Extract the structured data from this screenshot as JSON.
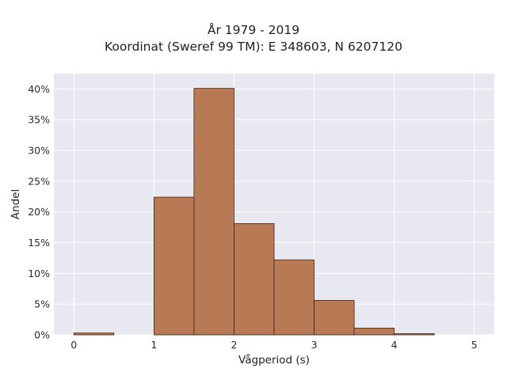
{
  "chart_data": {
    "type": "bar",
    "title": "År 1979 - 2019",
    "subtitle": "Koordinat (Sweref 99 TM): E 348603, N 6207120",
    "xlabel": "Vågperiod (s)",
    "ylabel": "Andel",
    "xlim": [
      -0.25,
      5.25
    ],
    "ylim": [
      0,
      0.425
    ],
    "xticks": [
      0,
      1,
      2,
      3,
      4,
      5
    ],
    "xtick_labels": [
      "0",
      "1",
      "2",
      "3",
      "4",
      "5"
    ],
    "yticks": [
      0,
      0.05,
      0.1,
      0.15,
      0.2,
      0.25,
      0.3,
      0.35,
      0.4
    ],
    "ytick_labels": [
      "0%",
      "5%",
      "10%",
      "15%",
      "20%",
      "25%",
      "30%",
      "35%",
      "40%"
    ],
    "bin_width": 0.5,
    "bins": [
      {
        "start": 0.0,
        "end": 0.5,
        "value": 0.003
      },
      {
        "start": 0.5,
        "end": 1.0,
        "value": 0.0
      },
      {
        "start": 1.0,
        "end": 1.5,
        "value": 0.224
      },
      {
        "start": 1.5,
        "end": 2.0,
        "value": 0.401
      },
      {
        "start": 2.0,
        "end": 2.5,
        "value": 0.181
      },
      {
        "start": 2.5,
        "end": 3.0,
        "value": 0.122
      },
      {
        "start": 3.0,
        "end": 3.5,
        "value": 0.056
      },
      {
        "start": 3.5,
        "end": 4.0,
        "value": 0.011
      },
      {
        "start": 4.0,
        "end": 4.5,
        "value": 0.002
      }
    ],
    "grid": true,
    "colors": {
      "bar": "#b87a55",
      "bar_edge": "#3a2418",
      "plot_bg": "#e8e8f1",
      "grid": "#ffffff"
    }
  }
}
